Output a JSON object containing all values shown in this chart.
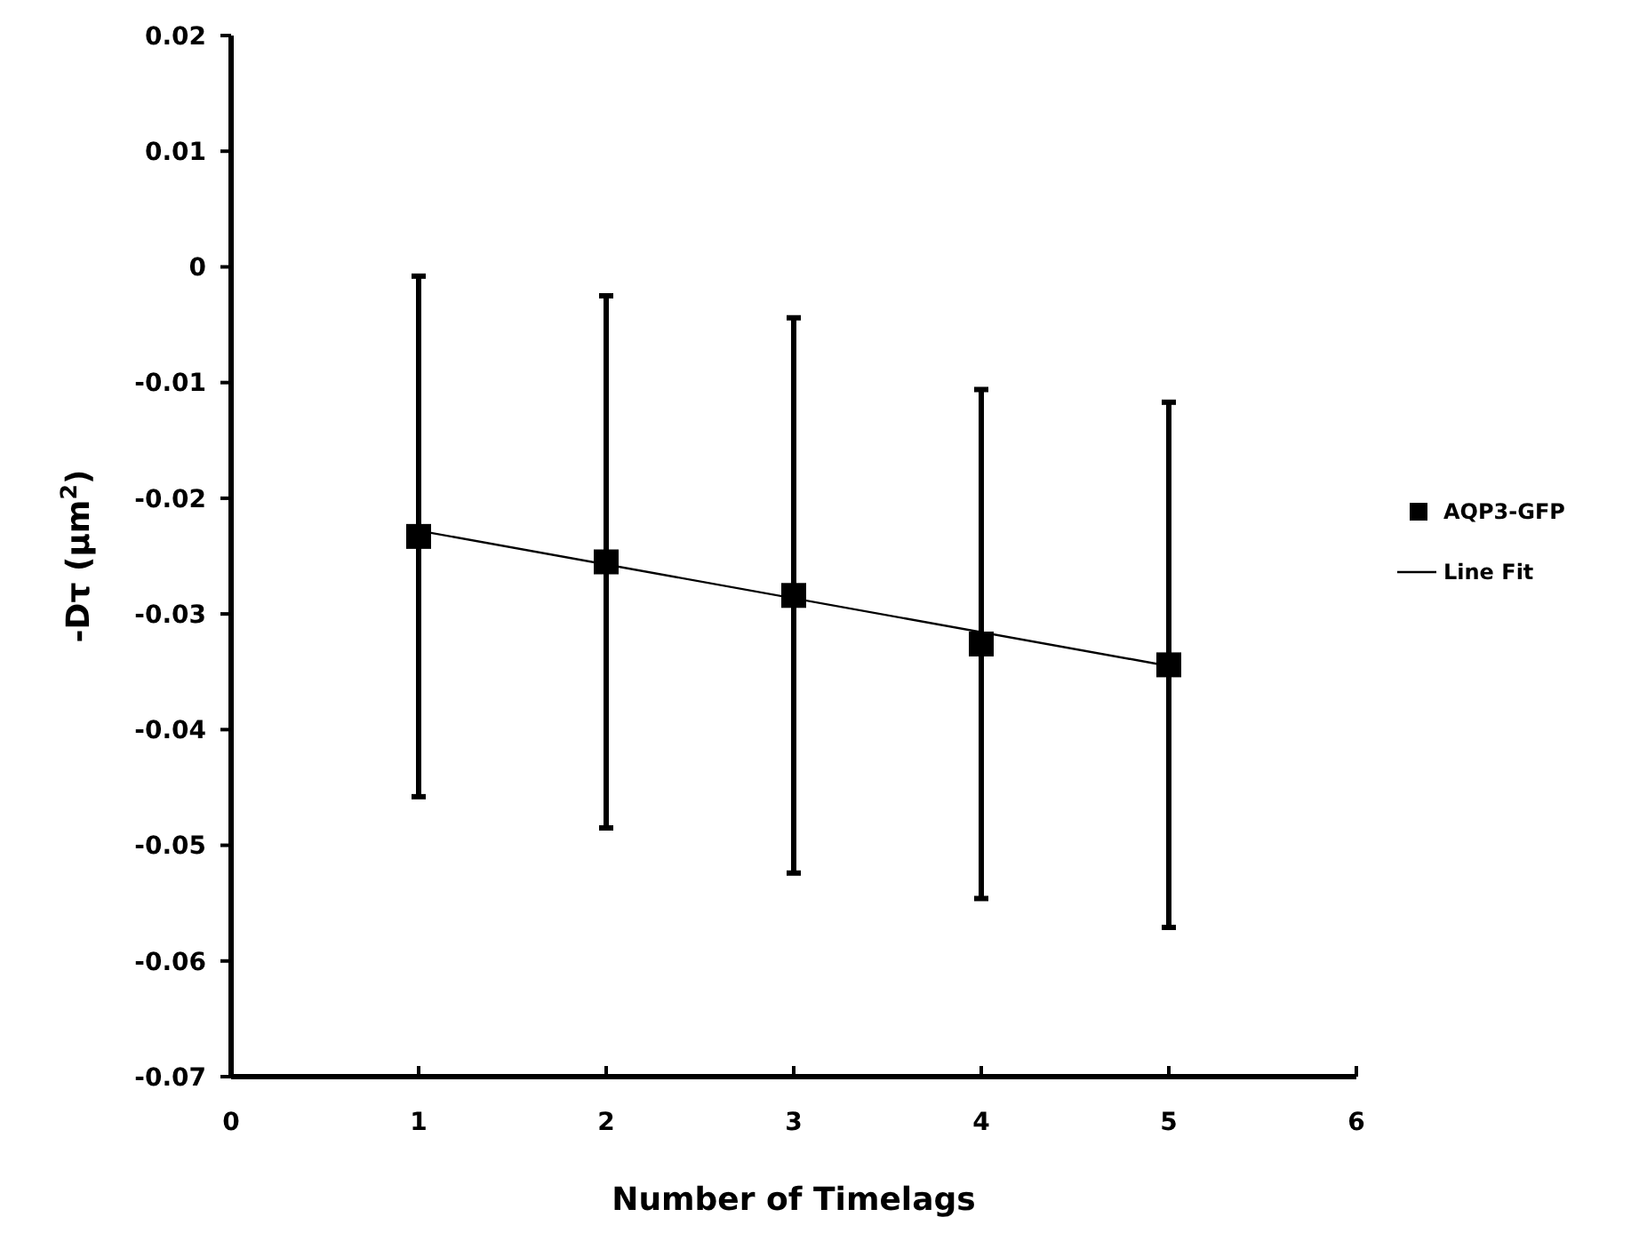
{
  "chart_data": {
    "type": "scatter",
    "xlabel": "Number of Timelags",
    "ylabel": "-Dτ (μm$^{2}$)",
    "xlim": [
      0,
      6
    ],
    "xticks": [
      0,
      1,
      2,
      3,
      4,
      5,
      6
    ],
    "ylim": [
      -0.07,
      0.02
    ],
    "yticks": [
      0.02,
      0.01,
      0,
      -0.01,
      -0.02,
      -0.03,
      -0.04,
      -0.05,
      -0.06,
      -0.07
    ],
    "grid": false,
    "legend": "right",
    "series": [
      {
        "name": "AQP3-GFP",
        "marker": "square",
        "color": "#000000",
        "x": [
          1,
          2,
          3,
          4,
          5
        ],
        "values": [
          -0.0233,
          -0.0255,
          -0.0284,
          -0.0326,
          -0.0344
        ],
        "errors": [
          0.0225,
          0.023,
          0.024,
          0.022,
          0.0227
        ]
      },
      {
        "name": "Line Fit",
        "type": "line",
        "marker": "none",
        "line_style": "solid",
        "color": "#000000",
        "x": [
          1,
          5
        ],
        "values": [
          -0.0228,
          -0.0345
        ]
      }
    ]
  }
}
